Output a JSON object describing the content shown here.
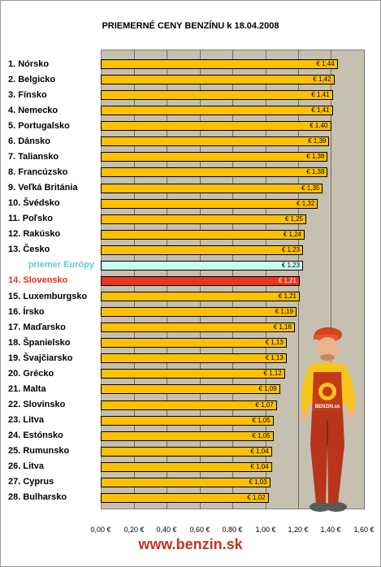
{
  "chart_data": {
    "type": "bar",
    "orientation": "horizontal",
    "title": "PRIEMERNÉ CENY BENZÍNU k 18.04.2008",
    "categories": [
      "1. Nórsko",
      "2. Belgicko",
      "3. Fínsko",
      "4. Nemecko",
      "5. Portugalsko",
      "6. Dánsko",
      "7. Taliansko",
      "8. Francúzsko",
      "9. Veľká Británia",
      "10. Švédsko",
      "11. Poľsko",
      "12. Rakúsko",
      "13. Česko",
      "priemer Európy",
      "14. Slovensko",
      "15. Luxemburgsko",
      "16. Írsko",
      "17. Maďarsko",
      "18. Španielsko",
      "19. Švajčiarsko",
      "20. Grécko",
      "21. Malta",
      "22. Slovinsko",
      "23. Litva",
      "24. Estónsko",
      "25. Rumunsko",
      "26. Litva",
      "27. Cyprus",
      "28. Bulharsko"
    ],
    "values": [
      1.44,
      1.42,
      1.41,
      1.41,
      1.4,
      1.39,
      1.38,
      1.38,
      1.35,
      1.32,
      1.25,
      1.24,
      1.23,
      1.23,
      1.21,
      1.21,
      1.19,
      1.18,
      1.13,
      1.13,
      1.12,
      1.09,
      1.07,
      1.05,
      1.05,
      1.04,
      1.04,
      1.03,
      1.02
    ],
    "value_labels": [
      "€ 1,44",
      "€ 1,42",
      "€ 1,41",
      "€ 1,41",
      "€ 1,40",
      "€ 1,39",
      "€ 1,38",
      "€ 1,38",
      "€ 1,35",
      "€ 1,32",
      "€ 1,25",
      "€ 1,24",
      "€ 1,23",
      "€ 1,23",
      "€ 1,21",
      "€ 1,21",
      "€ 1,19",
      "€ 1,18",
      "€ 1,13",
      "€ 1,13",
      "€ 1,12",
      "€ 1,09",
      "€ 1,07",
      "€ 1,05",
      "€ 1,05",
      "€ 1,04",
      "€ 1,04",
      "€ 1,03",
      "€ 1,02"
    ],
    "average_category": "priemer Európy",
    "highlight_category": "14. Slovensko",
    "xlim": [
      0,
      1.6
    ],
    "xticks": [
      0,
      0.2,
      0.4,
      0.6,
      0.8,
      1.0,
      1.2,
      1.4,
      1.6
    ],
    "xtick_labels": [
      "0,00 €",
      "0,20 €",
      "0,40 €",
      "0,60 €",
      "0,80 €",
      "1,00 €",
      "1,20 €",
      "1,40 €",
      "1,60 €"
    ],
    "grid": true,
    "colors": {
      "bar": "#ffc000",
      "average": "#ccfbf2",
      "highlight": "#e8361f",
      "plot_bg": "#c6c0b0",
      "avg_label": "#5fc5e0",
      "highlight_label": "#e0301b"
    }
  },
  "footer": "www.benzin.sk",
  "mascot_badge": "BENZIN.sk",
  "mascot_icon": "mascot-worker-icon"
}
